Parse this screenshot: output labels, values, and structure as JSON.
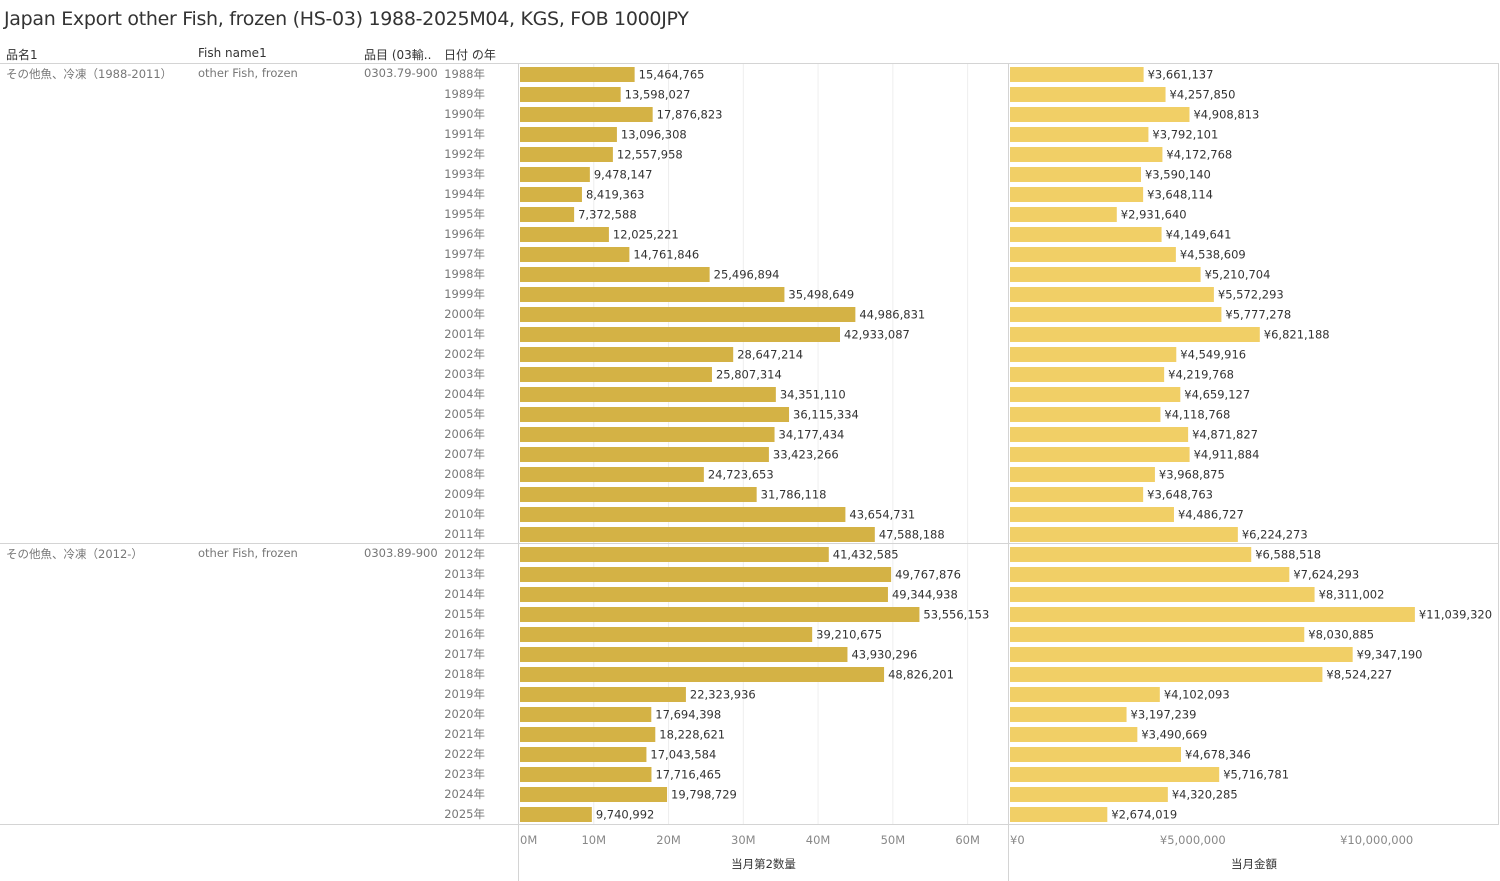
{
  "title": "Japan Export other Fish, frozen (HS-03) 1988-2025M04, KGS, FOB 1000JPY",
  "headers": {
    "col1": "品名1",
    "col2": "Fish name1",
    "col3": "品目 (03輸..",
    "col4": "日付 の年"
  },
  "groups": [
    {
      "name_jp": "その他魚、冷凍（1988-2011）",
      "name_en": "other Fish, frozen",
      "code": "0303.79-900",
      "start": 0,
      "count": 24
    },
    {
      "name_jp": "その他魚、冷凍（2012-）",
      "name_en": "other Fish, frozen",
      "code": "0303.89-900",
      "start": 24,
      "count": 14
    }
  ],
  "chart_data": [
    {
      "type": "bar",
      "orientation": "horizontal",
      "xlabel": "当月第2数量",
      "xlim": [
        0,
        65000000
      ],
      "ticks": [
        0,
        10000000,
        20000000,
        30000000,
        40000000,
        50000000,
        60000000
      ],
      "tick_labels": [
        "0M",
        "10M",
        "20M",
        "30M",
        "40M",
        "50M",
        "60M"
      ],
      "color": "#D4B245",
      "categories": [
        "1988年",
        "1989年",
        "1990年",
        "1991年",
        "1992年",
        "1993年",
        "1994年",
        "1995年",
        "1996年",
        "1997年",
        "1998年",
        "1999年",
        "2000年",
        "2001年",
        "2002年",
        "2003年",
        "2004年",
        "2005年",
        "2006年",
        "2007年",
        "2008年",
        "2009年",
        "2010年",
        "2011年",
        "2012年",
        "2013年",
        "2014年",
        "2015年",
        "2016年",
        "2017年",
        "2018年",
        "2019年",
        "2020年",
        "2021年",
        "2022年",
        "2023年",
        "2024年",
        "2025年"
      ],
      "values": [
        15464765,
        13598027,
        17876823,
        13096308,
        12557958,
        9478147,
        8419363,
        7372588,
        12025221,
        14761846,
        25496894,
        35498649,
        44986831,
        42933087,
        28647214,
        25807314,
        34351110,
        36115334,
        34177434,
        33423266,
        24723653,
        31786118,
        43654731,
        47588188,
        41432585,
        49767876,
        49344938,
        53556153,
        39210675,
        43930296,
        48826201,
        22323936,
        17694398,
        18228621,
        17043584,
        17716465,
        19798729,
        9740992
      ],
      "labels": [
        "15,464,765",
        "13,598,027",
        "17,876,823",
        "13,096,308",
        "12,557,958",
        "9,478,147",
        "8,419,363",
        "7,372,588",
        "12,025,221",
        "14,761,846",
        "25,496,894",
        "35,498,649",
        "44,986,831",
        "42,933,087",
        "28,647,214",
        "25,807,314",
        "34,351,110",
        "36,115,334",
        "34,177,434",
        "33,423,266",
        "24,723,653",
        "31,786,118",
        "43,654,731",
        "47,588,188",
        "41,432,585",
        "49,767,876",
        "49,344,938",
        "53,556,153",
        "39,210,675",
        "43,930,296",
        "48,826,201",
        "22,323,936",
        "17,694,398",
        "18,228,621",
        "17,043,584",
        "17,716,465",
        "19,798,729",
        "9,740,992"
      ]
    },
    {
      "type": "bar",
      "orientation": "horizontal",
      "xlabel": "当月金額",
      "xlim": [
        0,
        13300000
      ],
      "ticks": [
        0,
        5000000,
        10000000
      ],
      "tick_labels": [
        "¥0",
        "¥5,000,000",
        "¥10,000,000"
      ],
      "color": "#F1CF66",
      "values": [
        3661137,
        4257850,
        4908813,
        3792101,
        4172768,
        3590140,
        3648114,
        2931640,
        4149641,
        4538609,
        5210704,
        5572293,
        5777278,
        6821188,
        4549916,
        4219768,
        4659127,
        4118768,
        4871827,
        4911884,
        3968875,
        3648763,
        4486727,
        6224273,
        6588518,
        7624293,
        8311002,
        11039320,
        8030885,
        9347190,
        8524227,
        4102093,
        3197239,
        3490669,
        4678346,
        5716781,
        4320285,
        2674019
      ],
      "labels": [
        "¥3,661,137",
        "¥4,257,850",
        "¥4,908,813",
        "¥3,792,101",
        "¥4,172,768",
        "¥3,590,140",
        "¥3,648,114",
        "¥2,931,640",
        "¥4,149,641",
        "¥4,538,609",
        "¥5,210,704",
        "¥5,572,293",
        "¥5,777,278",
        "¥6,821,188",
        "¥4,549,916",
        "¥4,219,768",
        "¥4,659,127",
        "¥4,118,768",
        "¥4,871,827",
        "¥4,911,884",
        "¥3,968,875",
        "¥3,648,763",
        "¥4,486,727",
        "¥6,224,273",
        "¥6,588,518",
        "¥7,624,293",
        "¥8,311,002",
        "¥11,039,320",
        "¥8,030,885",
        "¥9,347,190",
        "¥8,524,227",
        "¥4,102,093",
        "¥3,197,239",
        "¥3,490,669",
        "¥4,678,346",
        "¥5,716,781",
        "¥4,320,285",
        "¥2,674,019"
      ]
    }
  ]
}
